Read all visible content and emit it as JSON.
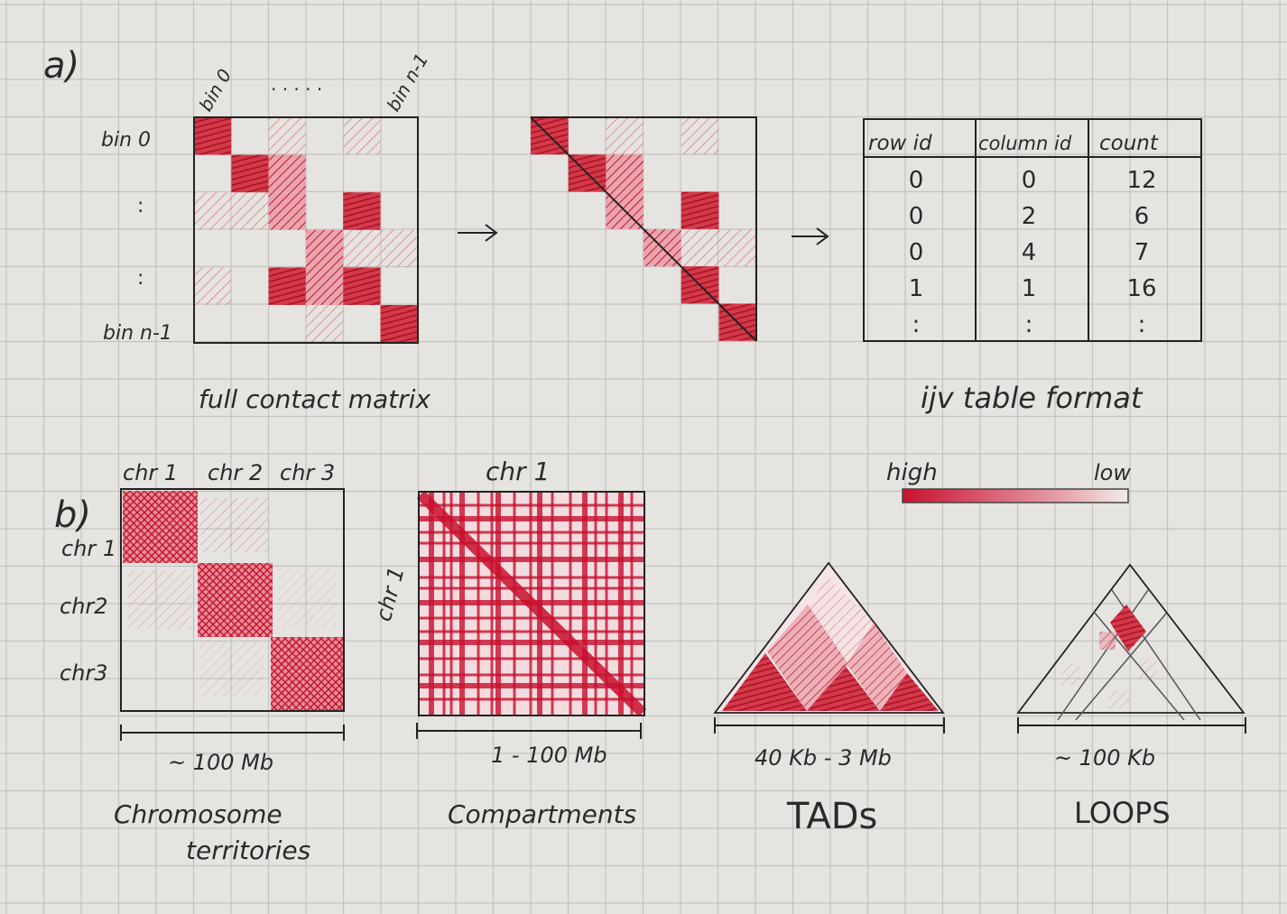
{
  "panel_a": {
    "label": "a)",
    "col_labels": [
      "bin 0",
      ". . . . .",
      "bin n-1"
    ],
    "row_labels": [
      "bin 0",
      ":",
      ":",
      "bin n-1"
    ],
    "matrix_caption": "full contact matrix",
    "table_caption": "ijv table format",
    "table": {
      "headers": [
        "row id",
        "column id",
        "count"
      ],
      "rows": [
        [
          "0",
          "0",
          "12"
        ],
        [
          "0",
          "2",
          "6"
        ],
        [
          "0",
          "4",
          "7"
        ],
        [
          "1",
          "1",
          "16"
        ],
        [
          ":",
          ":",
          ":"
        ]
      ]
    }
  },
  "legend": {
    "high": "high",
    "low": "low",
    "high_color": "#c8102e",
    "low_color": "#f0e8e8"
  },
  "panel_b": {
    "label": "b)",
    "territories": {
      "col_labels": [
        "chr 1",
        "chr 2",
        "chr 3"
      ],
      "row_labels": [
        "chr 1",
        "chr2",
        "chr3"
      ],
      "scale": "~ 100 Mb",
      "caption_line1": "Chromosome",
      "caption_line2": "territories"
    },
    "compartments": {
      "title": "chr 1",
      "side_label": "chr 1",
      "scale": "1 - 100 Mb",
      "caption": "Compartments"
    },
    "tads": {
      "scale": "40 Kb - 3 Mb",
      "caption": "TADs"
    },
    "loops": {
      "scale": "~ 100 Kb",
      "caption": "LOOPS"
    }
  },
  "colors": {
    "ink": "#2a2a2a",
    "red": "#c8102e",
    "grid": "#c4c2bf",
    "paper": "#e6e4e1"
  }
}
